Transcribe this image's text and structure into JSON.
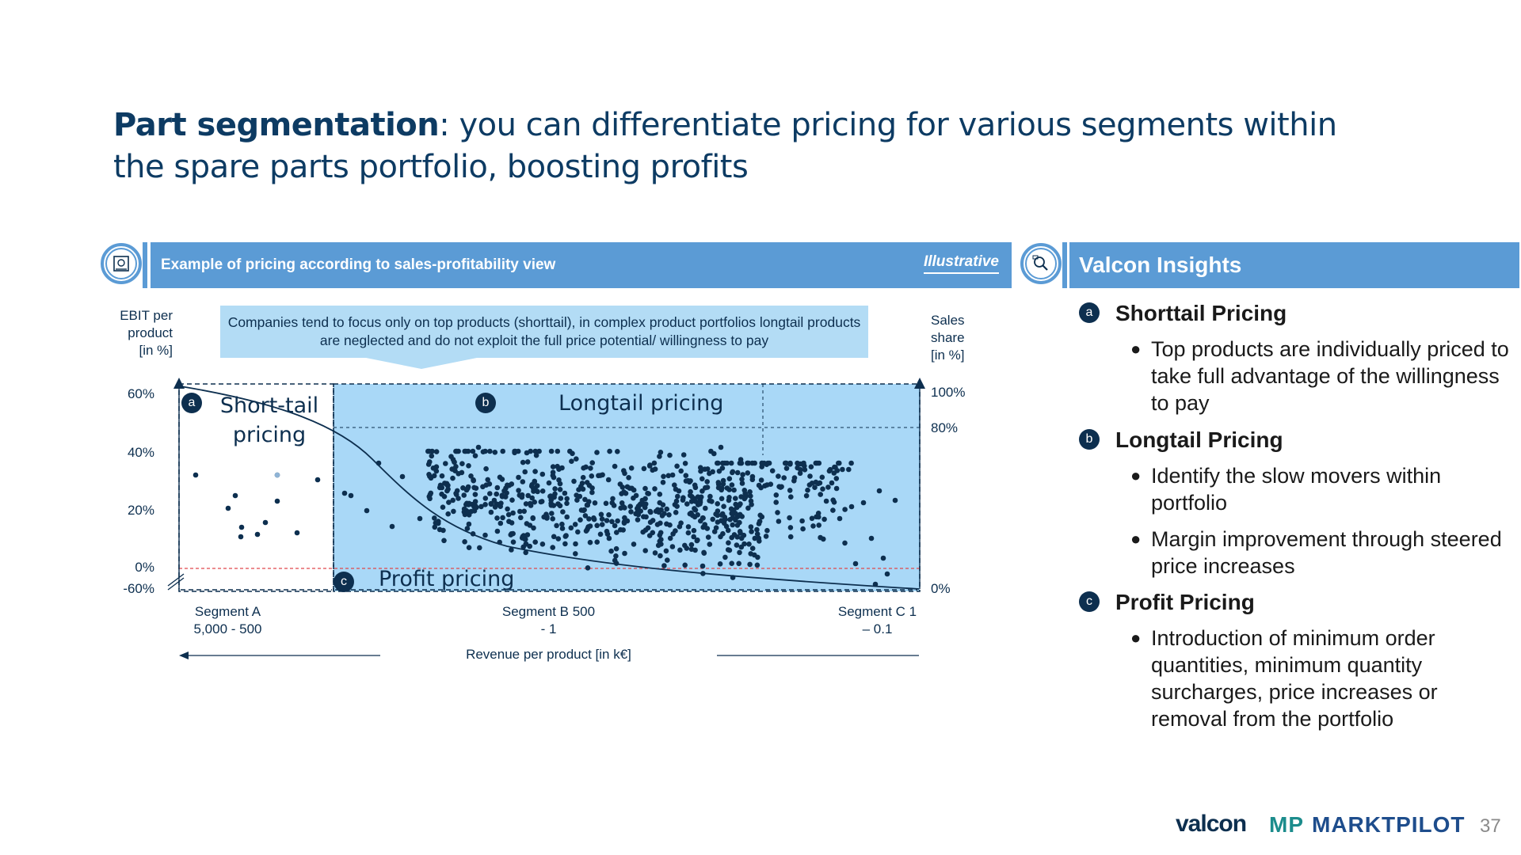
{
  "title": {
    "lead": "Part segmentation",
    "rest": ": you can differentiate pricing for various segments within the spare parts portfolio, boosting profits"
  },
  "left_panel": {
    "header": "Example of pricing according to sales-profitability view",
    "badge": "Illustrative",
    "icon": "pricing-chart-icon"
  },
  "chart_data": {
    "type": "scatter",
    "annotation": "Companies tend to focus only on top products (shorttail), in complex product portfolios longtail products are neglected and do not exploit the full price potential/ willingness to pay",
    "y_left_label": "EBIT per product [in %]",
    "y_left_ticks": [
      "60%",
      "40%",
      "20%",
      "0%",
      "-60%"
    ],
    "y_right_label": "Sales share [in %]",
    "y_right_ticks": [
      "100%",
      "80%",
      "0%"
    ],
    "xlabel": "Revenue per product [in k€]",
    "segments": [
      {
        "name": "Segment A",
        "range": "5,000 - 500"
      },
      {
        "name": "Segment B 500",
        "range": "- 1"
      },
      {
        "name": "Segment C 1",
        "range": "– 0.1"
      }
    ],
    "regions": [
      {
        "badge": "a",
        "label_line1": "Short-tail",
        "label_line2": "pricing"
      },
      {
        "badge": "b",
        "label": "Longtail pricing"
      },
      {
        "badge": "c",
        "label": "Profit pricing"
      }
    ],
    "colors": {
      "highlight": "#a9d8f7",
      "points": "#0d2f4f",
      "zero_line": "#e0474c"
    }
  },
  "insights": {
    "header": "Valcon Insights",
    "icon": "insights-magnifier-icon",
    "items": [
      {
        "badge": "a",
        "title": "Shorttail Pricing",
        "bullets": [
          "Top products are individually priced to take full advantage of the willingness to pay"
        ]
      },
      {
        "badge": "b",
        "title": "Longtail Pricing",
        "bullets": [
          "Identify the slow movers within portfolio",
          "Margin improvement through steered price increases"
        ]
      },
      {
        "badge": "c",
        "title": "Profit Pricing",
        "bullets": [
          "Introduction of minimum order quantities, minimum quantity surcharges, price increases or removal from the portfolio"
        ]
      }
    ]
  },
  "footer": {
    "logo1": "valcon",
    "logo2_mark": "MP",
    "logo2_text": "MARKTPILOT",
    "page": "37"
  }
}
